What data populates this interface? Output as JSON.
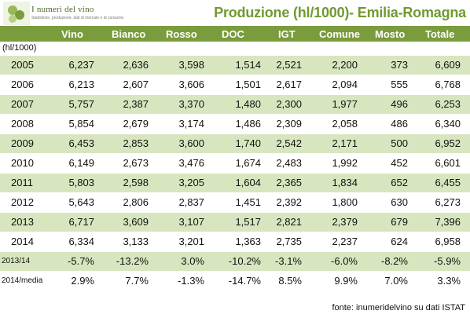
{
  "logo": {
    "title": "I numeri del vino",
    "subtitle": "Statistiche, produzione, dati di mercato e di consumo"
  },
  "title": "Produzione (hl/1000)- Emilia-Romagna",
  "unit": "(hl/1000)",
  "columns": [
    "",
    "Vino",
    "Bianco",
    "Rosso",
    "DOC",
    "IGT",
    "Comune",
    "Mosto",
    "Totale"
  ],
  "rows": [
    {
      "label": "2005",
      "values": [
        "6,237",
        "2,636",
        "3,598",
        "1,514",
        "2,521",
        "2,200",
        "373",
        "6,609"
      ]
    },
    {
      "label": "2006",
      "values": [
        "6,213",
        "2,607",
        "3,606",
        "1,501",
        "2,617",
        "2,094",
        "555",
        "6,768"
      ]
    },
    {
      "label": "2007",
      "values": [
        "5,757",
        "2,387",
        "3,370",
        "1,480",
        "2,300",
        "1,977",
        "496",
        "6,253"
      ]
    },
    {
      "label": "2008",
      "values": [
        "5,854",
        "2,679",
        "3,174",
        "1,486",
        "2,309",
        "2,058",
        "486",
        "6,340"
      ]
    },
    {
      "label": "2009",
      "values": [
        "6,453",
        "2,853",
        "3,600",
        "1,740",
        "2,542",
        "2,171",
        "500",
        "6,952"
      ]
    },
    {
      "label": "2010",
      "values": [
        "6,149",
        "2,673",
        "3,476",
        "1,674",
        "2,483",
        "1,992",
        "452",
        "6,601"
      ]
    },
    {
      "label": "2011",
      "values": [
        "5,803",
        "2,598",
        "3,205",
        "1,604",
        "2,365",
        "1,834",
        "652",
        "6,455"
      ]
    },
    {
      "label": "2012",
      "values": [
        "5,643",
        "2,806",
        "2,837",
        "1,451",
        "2,392",
        "1,800",
        "630",
        "6,273"
      ]
    },
    {
      "label": "2013",
      "values": [
        "6,717",
        "3,609",
        "3,107",
        "1,517",
        "2,821",
        "2,379",
        "679",
        "7,396"
      ]
    },
    {
      "label": "2014",
      "values": [
        "6,334",
        "3,133",
        "3,201",
        "1,363",
        "2,735",
        "2,237",
        "624",
        "6,958"
      ]
    },
    {
      "label": "2013/14",
      "values": [
        "-5.7%",
        "-13.2%",
        "3.0%",
        "-10.2%",
        "-3.1%",
        "-6.0%",
        "-8.2%",
        "-5.9%"
      ]
    },
    {
      "label": "2014/media",
      "values": [
        "2.9%",
        "7.7%",
        "-1.3%",
        "-14.7%",
        "8.5%",
        "9.9%",
        "7.0%",
        "3.3%"
      ]
    }
  ],
  "source": "fonte: inumeridelvino su dati ISTAT",
  "colors": {
    "header_bg": "#7a9c3c",
    "title": "#6f9a2f",
    "stripe": "#d8e6bf"
  }
}
